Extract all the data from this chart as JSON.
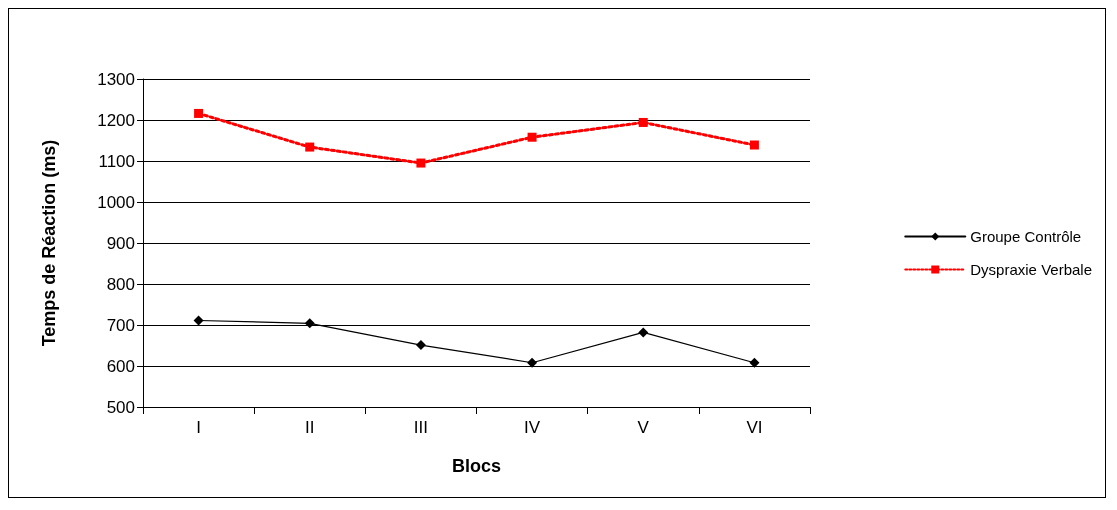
{
  "chart_data": {
    "type": "line",
    "xlabel": "Blocs",
    "ylabel": "Temps de Réaction (ms)",
    "categories": [
      "I",
      "II",
      "III",
      "IV",
      "V",
      "VI"
    ],
    "series": [
      {
        "name": "Groupe Contrôle",
        "color": "#000000",
        "marker": "diamond",
        "line_style": "solid",
        "values": [
          711,
          704,
          651,
          608,
          682,
          608
        ]
      },
      {
        "name": "Dyspraxie Verbale",
        "color": "#ff0000",
        "marker": "square",
        "line_style": "dotted",
        "values": [
          1216,
          1134,
          1095,
          1158,
          1194,
          1139
        ]
      }
    ],
    "ylim": [
      500,
      1300
    ],
    "yticks": [
      500,
      600,
      700,
      800,
      900,
      1000,
      1100,
      1200,
      1300
    ],
    "grid": "y",
    "legend": "right"
  }
}
